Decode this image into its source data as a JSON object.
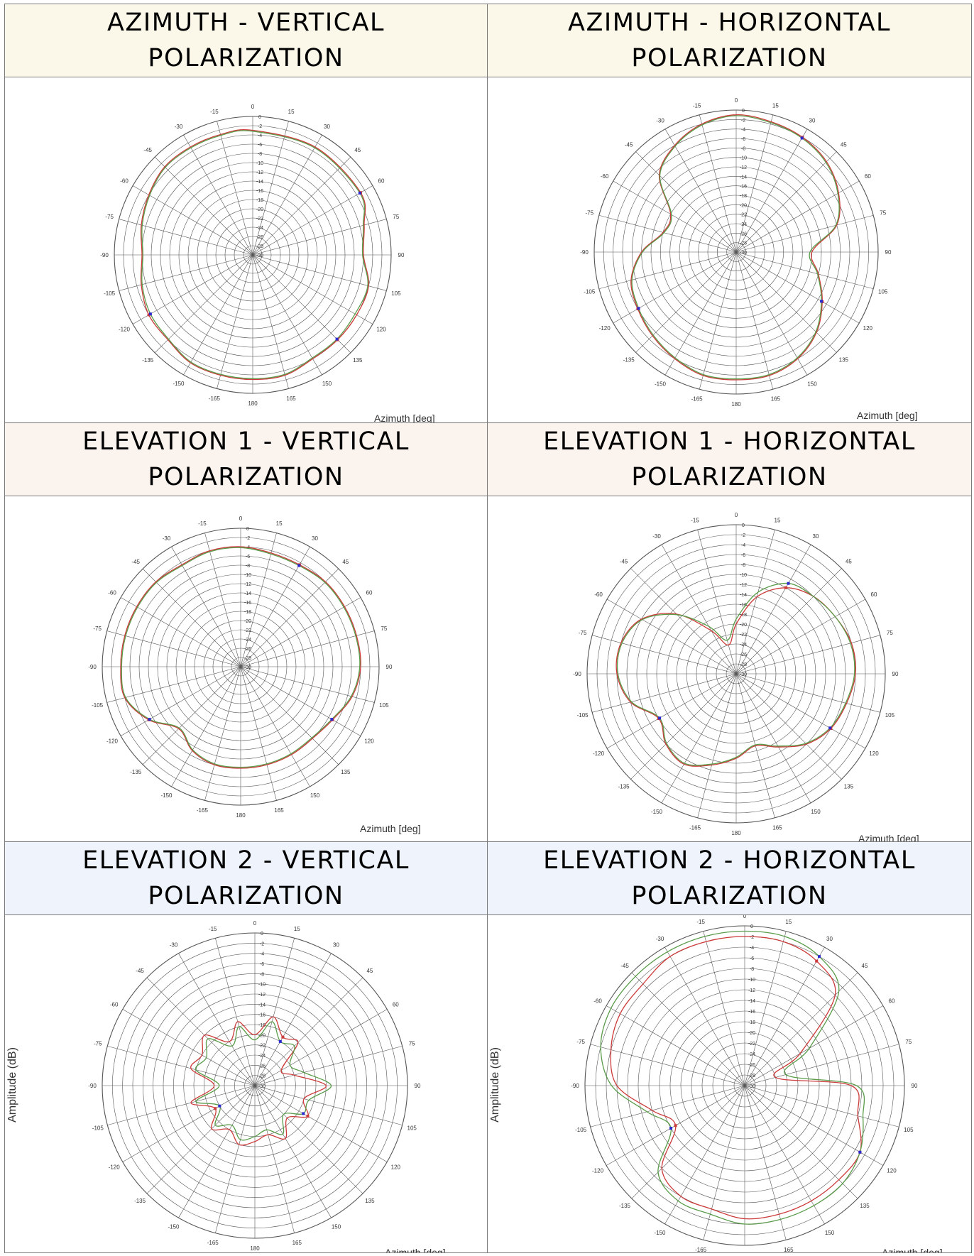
{
  "colors": {
    "beige": "#fbf8e9",
    "peach": "#fbf4ee",
    "lightblue": "#eef3fc",
    "grid": "#555555",
    "trace_red": "#cc3a3a",
    "trace_green": "#5a9c4a",
    "marker_blue": "#2a2ad0"
  },
  "headers": {
    "az_v": "AZIMUTH  -  VERTICAL\nPOLARIZATION",
    "az_h": "AZIMUTH  -  HORIZONTAL\nPOLARIZATION",
    "el1_v": "ELEVATION  1  -  VERTICAL\nPOLARIZATION",
    "el1_h": "ELEVATION  1  -  HORIZONTAL\nPOLARIZATION",
    "el2_v": "ELEVATION  2  -  VERTICAL\nPOLARIZATION",
    "el2_h": "ELEVATION  2  -  HORIZONTAL\nPOLARIZATION"
  },
  "axis": {
    "xlabel": "Azimuth  [deg]",
    "ylabel": "Amplitude (dB)"
  },
  "chart_data": [
    {
      "id": "az_v",
      "type": "polar",
      "xlabel": "Azimuth  [deg]",
      "angle_ticks": [
        "0",
        "15",
        "30",
        "45",
        "60",
        "75",
        "90",
        "105",
        "120",
        "135",
        "150",
        "165",
        "180",
        "-165",
        "-150",
        "-135",
        "-120",
        "-105",
        "-90",
        "-75",
        "-60",
        "-45",
        "-30",
        "-15"
      ],
      "r_ticks": [
        "0",
        "-2",
        "-4",
        "-6",
        "-8",
        "-10",
        "-12",
        "-14",
        "-16",
        "-18",
        "-20",
        "-22",
        "-24",
        "-26",
        "-28",
        "-30"
      ],
      "rlim": [
        -30,
        0
      ],
      "series": [
        {
          "color": "red",
          "angles": [
            0,
            30,
            60,
            75,
            90,
            105,
            120,
            135,
            150,
            165,
            180,
            -165,
            -150,
            -135,
            -120,
            -105,
            -90,
            -75,
            -60,
            -45,
            -30,
            -15
          ],
          "values": [
            -3,
            -3,
            -3,
            -5,
            -6,
            -4,
            -4,
            -4,
            -4,
            -3,
            -3,
            -3,
            -3,
            -4,
            -4,
            -5,
            -6,
            -5,
            -4,
            -3,
            -3,
            -3
          ]
        },
        {
          "color": "green",
          "angles": [
            0,
            30,
            60,
            75,
            90,
            105,
            120,
            135,
            150,
            165,
            180,
            -165,
            -150,
            -135,
            -120,
            -105,
            -90,
            -75,
            -60,
            -45,
            -30,
            -15
          ],
          "values": [
            -3.2,
            -3.2,
            -3.2,
            -5.2,
            -6.2,
            -4.2,
            -4.4,
            -4.2,
            -4.2,
            -3.2,
            -3.2,
            -3.2,
            -3.2,
            -4.2,
            -4.4,
            -5.2,
            -6.2,
            -5.2,
            -4.2,
            -3.2,
            -3.2,
            -3.2
          ]
        }
      ]
    },
    {
      "id": "az_h",
      "type": "polar",
      "xlabel": "Azimuth  [deg]",
      "angle_ticks": [
        "0",
        "15",
        "30",
        "45",
        "60",
        "75",
        "90",
        "105",
        "120",
        "135",
        "150",
        "165",
        "180",
        "-165",
        "-150",
        "-135",
        "-120",
        "-105",
        "-90",
        "-75",
        "-60",
        "-45",
        "-30",
        "-15"
      ],
      "r_ticks": [
        "0",
        "-2",
        "-4",
        "-6",
        "-8",
        "-10",
        "-12",
        "-14",
        "-16",
        "-18",
        "-20",
        "-22",
        "-24",
        "-26",
        "-28",
        "-30"
      ],
      "rlim": [
        -30,
        0
      ],
      "series": [
        {
          "color": "red",
          "angles": [
            0,
            15,
            30,
            45,
            60,
            75,
            90,
            105,
            120,
            135,
            150,
            165,
            180,
            -165,
            -150,
            -135,
            -120,
            -105,
            -90,
            -75,
            -60,
            -45,
            -30,
            -15
          ],
          "values": [
            -1,
            -1.5,
            -2,
            -3,
            -5,
            -8,
            -14,
            -12,
            -9,
            -6,
            -4,
            -3,
            -3,
            -3,
            -4,
            -5,
            -6,
            -7,
            -10,
            -14,
            -14,
            -7,
            -4,
            -2
          ]
        },
        {
          "color": "green",
          "angles": [
            0,
            15,
            30,
            45,
            60,
            75,
            90,
            105,
            120,
            135,
            150,
            165,
            180,
            -165,
            -150,
            -135,
            -120,
            -105,
            -90,
            -75,
            -60,
            -45,
            -30,
            -15
          ],
          "values": [
            -1.2,
            -1.7,
            -2.2,
            -3.2,
            -5.2,
            -8.2,
            -14.4,
            -12.2,
            -9.2,
            -6.2,
            -4.2,
            -3.2,
            -3.2,
            -3.2,
            -4.2,
            -5.2,
            -6.2,
            -7.2,
            -10.2,
            -14.2,
            -14.2,
            -7.2,
            -4.2,
            -2.2
          ]
        }
      ]
    },
    {
      "id": "el1_v",
      "type": "polar",
      "xlabel": "Azimuth  [deg]",
      "angle_ticks": [
        "0",
        "15",
        "30",
        "45",
        "60",
        "75",
        "90",
        "105",
        "120",
        "135",
        "150",
        "165",
        "180",
        "-165",
        "-150",
        "-135",
        "-120",
        "-105",
        "-90",
        "-75",
        "-60",
        "-45",
        "-30",
        "-15"
      ],
      "r_ticks": [
        "0",
        "-2",
        "-4",
        "-6",
        "-8",
        "-10",
        "-12",
        "-14",
        "-16",
        "-18",
        "-20",
        "-22",
        "-24",
        "-26",
        "-28",
        "-30"
      ],
      "rlim": [
        -30,
        0
      ],
      "series": [
        {
          "color": "red",
          "angles": [
            0,
            15,
            30,
            45,
            60,
            75,
            90,
            105,
            120,
            135,
            150,
            165,
            180,
            -165,
            -150,
            -135,
            -120,
            -105,
            -90,
            -75,
            -60,
            -45,
            -30,
            -15
          ],
          "values": [
            -4,
            -4.5,
            -4.5,
            -4,
            -4,
            -4,
            -4,
            -5,
            -7,
            -8,
            -8,
            -8,
            -8,
            -8,
            -9,
            -11,
            -7,
            -4,
            -4,
            -4,
            -4,
            -4,
            -4.5,
            -4
          ]
        },
        {
          "color": "green",
          "angles": [
            0,
            15,
            30,
            45,
            60,
            75,
            90,
            105,
            120,
            135,
            150,
            165,
            180,
            -165,
            -150,
            -135,
            -120,
            -105,
            -90,
            -75,
            -60,
            -45,
            -30,
            -15
          ],
          "values": [
            -4.2,
            -4.7,
            -4.7,
            -4.2,
            -4.2,
            -4.2,
            -4.2,
            -5.2,
            -7.2,
            -8.2,
            -8.2,
            -8.2,
            -8.2,
            -8.2,
            -9.2,
            -11.2,
            -7.2,
            -4.2,
            -4.2,
            -4.2,
            -4.2,
            -4.2,
            -4.7,
            -4.2
          ]
        }
      ]
    },
    {
      "id": "el1_h",
      "type": "polar",
      "xlabel": "Azimuth  [deg]",
      "angle_ticks": [
        "0",
        "15",
        "30",
        "45",
        "60",
        "75",
        "90",
        "105",
        "120",
        "135",
        "150",
        "165",
        "180",
        "-165",
        "-150",
        "-135",
        "-120",
        "-105",
        "-90",
        "-75",
        "-60",
        "-45",
        "-30",
        "-15"
      ],
      "r_ticks": [
        "0",
        "-2",
        "-4",
        "-6",
        "-8",
        "-10",
        "-12",
        "-14",
        "-16",
        "-18",
        "-20",
        "-22",
        "-24",
        "-26",
        "-28",
        "-30"
      ],
      "rlim": [
        -30,
        0
      ],
      "series": [
        {
          "color": "red",
          "angles": [
            0,
            15,
            30,
            45,
            60,
            75,
            90,
            105,
            120,
            135,
            150,
            165,
            180,
            -165,
            -150,
            -135,
            -120,
            -105,
            -90,
            -75,
            -60,
            -45,
            -30,
            -15
          ],
          "values": [
            -20,
            -14,
            -10,
            -8,
            -7,
            -6,
            -6,
            -7,
            -8,
            -10,
            -13,
            -15,
            -13,
            -11,
            -9,
            -10,
            -12,
            -8,
            -6,
            -6,
            -8,
            -13,
            -20,
            -24
          ]
        },
        {
          "color": "green",
          "angles": [
            0,
            15,
            30,
            45,
            60,
            75,
            90,
            105,
            120,
            135,
            150,
            165,
            180,
            -165,
            -150,
            -135,
            -120,
            -105,
            -90,
            -75,
            -60,
            -45,
            -30,
            -15
          ],
          "values": [
            -19,
            -13,
            -9,
            -8,
            -7,
            -6.2,
            -6.2,
            -7.2,
            -8.2,
            -10.2,
            -13.2,
            -15.2,
            -13.2,
            -11.2,
            -9.2,
            -10.2,
            -12.2,
            -8.2,
            -6.2,
            -6.2,
            -8.2,
            -13.2,
            -19,
            -23
          ]
        }
      ]
    },
    {
      "id": "el2_v",
      "type": "polar",
      "xlabel": "Azimuth  [deg]",
      "ylabel": "Amplitude (dB)",
      "angle_ticks": [
        "0",
        "15",
        "30",
        "45",
        "60",
        "75",
        "90",
        "105",
        "120",
        "135",
        "150",
        "165",
        "180",
        "-165",
        "-150",
        "-135",
        "-120",
        "-105",
        "-90",
        "-75",
        "-60",
        "-45",
        "-30",
        "-15"
      ],
      "r_ticks": [
        "0",
        "-2",
        "-4",
        "-6",
        "-8",
        "-10",
        "-12",
        "-14",
        "-16",
        "-18",
        "-20",
        "-22",
        "-24",
        "-26",
        "-28",
        "-30"
      ],
      "rlim": [
        -30,
        0
      ],
      "series": [
        {
          "color": "red",
          "angles": [
            0,
            15,
            30,
            45,
            60,
            75,
            90,
            105,
            120,
            135,
            150,
            165,
            180,
            -165,
            -150,
            -135,
            -120,
            -105,
            -90,
            -75,
            -60,
            -45,
            -30,
            -15
          ],
          "values": [
            -20,
            -16,
            -19,
            -18,
            -24,
            -22,
            -16,
            -20,
            -18,
            -21,
            -18,
            -20,
            -19,
            -18,
            -20,
            -18,
            -21,
            -17,
            -22,
            -17,
            -18,
            -16,
            -20,
            -17
          ]
        },
        {
          "color": "green",
          "angles": [
            0,
            15,
            30,
            45,
            60,
            75,
            90,
            105,
            120,
            135,
            150,
            165,
            180,
            -165,
            -150,
            -135,
            -120,
            -105,
            -90,
            -75,
            -60,
            -45,
            -30,
            -15
          ],
          "values": [
            -21,
            -17,
            -20,
            -19,
            -22,
            -20,
            -15,
            -19,
            -19,
            -22,
            -19,
            -21,
            -20,
            -19,
            -21,
            -19,
            -22,
            -18,
            -23,
            -18,
            -19,
            -17,
            -21,
            -18
          ]
        }
      ]
    },
    {
      "id": "el2_h",
      "type": "polar",
      "xlabel": "Azimuth  [deg]",
      "ylabel": "Amplitude (dB)",
      "angle_ticks": [
        "0",
        "15",
        "30",
        "45",
        "60",
        "75",
        "90",
        "105",
        "120",
        "135",
        "150",
        "165",
        "180",
        "-165",
        "-150",
        "-135",
        "-120",
        "-105",
        "-90",
        "-75",
        "-60",
        "-45",
        "-30",
        "-15"
      ],
      "r_ticks": [
        "0",
        "-2",
        "-4",
        "-6",
        "-8",
        "-10",
        "-12",
        "-14",
        "-16",
        "-18",
        "-20",
        "-22",
        "-24",
        "-26",
        "-28",
        "-30"
      ],
      "rlim": [
        -30,
        0
      ],
      "series": [
        {
          "color": "red",
          "angles": [
            0,
            15,
            30,
            45,
            60,
            75,
            90,
            105,
            120,
            135,
            150,
            165,
            180,
            -165,
            -150,
            -135,
            -120,
            -105,
            -90,
            -75,
            -60,
            -45,
            -30,
            -15
          ],
          "values": [
            -2,
            -2,
            -3,
            -6,
            -18,
            -24,
            -10,
            -8,
            -5,
            -5,
            -5,
            -5,
            -5,
            -6,
            -6,
            -8,
            -15,
            -12,
            -6,
            -4,
            -3,
            -3,
            -2,
            -2
          ]
        },
        {
          "color": "green",
          "angles": [
            0,
            15,
            30,
            45,
            60,
            75,
            90,
            105,
            120,
            135,
            150,
            165,
            180,
            -165,
            -150,
            -135,
            -120,
            -105,
            -90,
            -75,
            -60,
            -45,
            -30,
            -15
          ],
          "values": [
            -1,
            -1,
            -2,
            -5,
            -16,
            -22,
            -9,
            -7,
            -5,
            -4,
            -4,
            -4,
            -4,
            -5,
            -5,
            -7,
            -14,
            -11,
            -5,
            -2,
            -1,
            -1,
            -1,
            -1
          ]
        }
      ]
    }
  ]
}
